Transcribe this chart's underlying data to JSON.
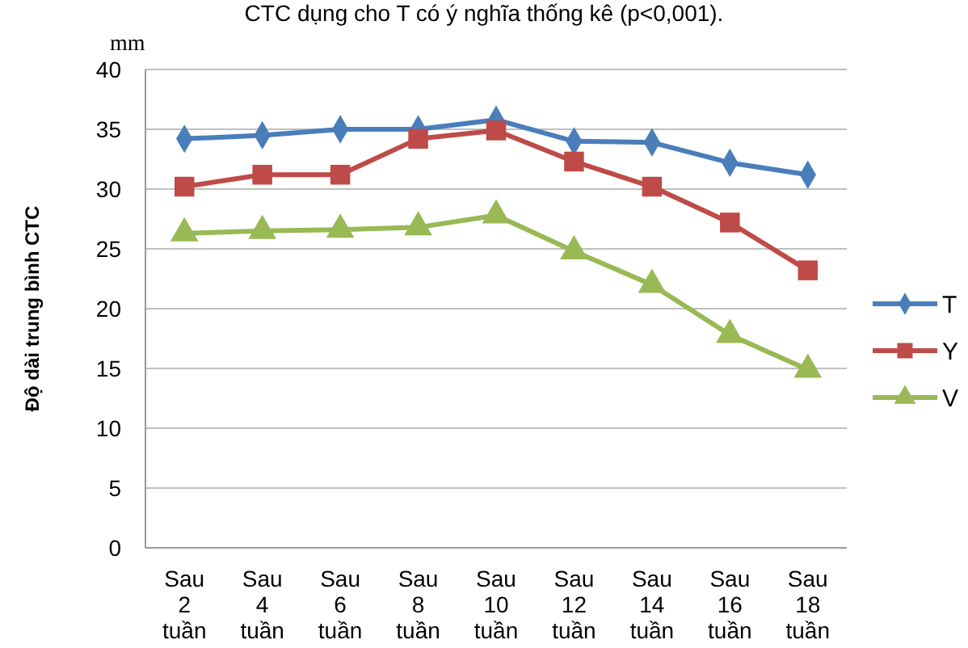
{
  "chart_data": {
    "type": "line",
    "ylabel": "Độ dài trung bình CTC",
    "annotations": [
      "CTC dụng cho T có ý nghĩa thống kê (p<0,001).",
      "mm"
    ],
    "categories": [
      "Sau 2 tuần",
      "Sau 4 tuần",
      "Sau 6 tuần",
      "Sau 8 tuần",
      "Sau 10 tuần",
      "Sau 12 tuần",
      "Sau 14 tuần",
      "Sau 16 tuần",
      "Sau 18 tuần"
    ],
    "series": [
      {
        "name": "T",
        "color": "#4a7ebb",
        "marker": "diamond",
        "values": [
          34.2,
          34.5,
          35,
          35,
          35.8,
          34,
          33.9,
          32.2,
          31.2
        ]
      },
      {
        "name": "Y",
        "color": "#be4b48",
        "marker": "square",
        "values": [
          30.2,
          31.2,
          31.2,
          34.2,
          34.9,
          32.3,
          30.2,
          27.2,
          23.2
        ]
      },
      {
        "name": "V",
        "color": "#98b954",
        "marker": "triangle",
        "values": [
          26.3,
          26.5,
          26.6,
          26.8,
          27.8,
          24.8,
          22,
          17.8,
          14.9
        ]
      }
    ],
    "ylim": [
      0,
      40
    ],
    "yticks": [
      0,
      5,
      10,
      15,
      20,
      25,
      30,
      35,
      40
    ],
    "grid": "y",
    "legend": "right"
  }
}
